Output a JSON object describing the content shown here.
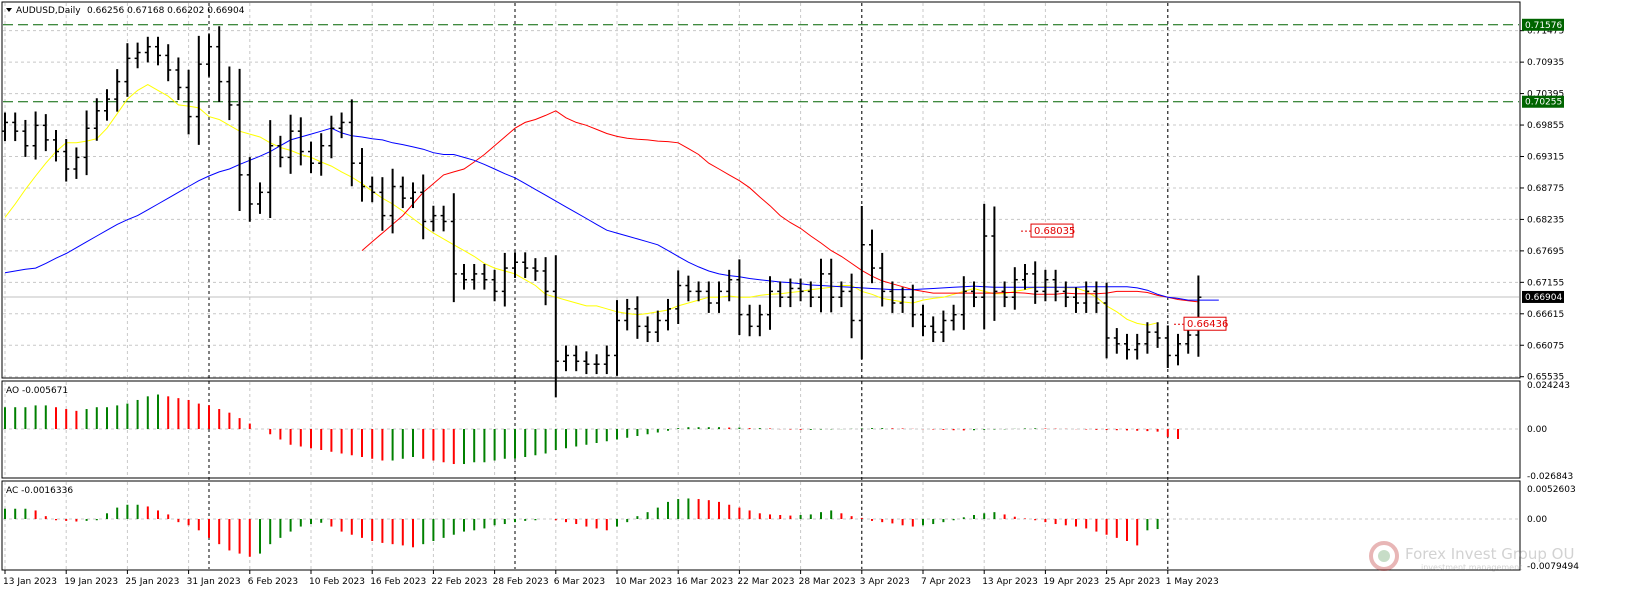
{
  "colors": {
    "up": "#008000",
    "down": "#ff0000",
    "grid": "#c8c8c8",
    "ema_fast": "#ffff00",
    "ema_mid": "#ff0000",
    "ema_slow": "#0000ff",
    "hline": "#006400",
    "price_line": "#c0c0c0"
  },
  "chart_data": {
    "type": "ohlc",
    "symbol_label": "AUDUSD,Daily",
    "ohlc_label": "0.66256 0.67168 0.66202 0.66904",
    "current_price": "0.66904",
    "price_ticks": [
      "0.71475",
      "0.70935",
      "0.70395",
      "0.69855",
      "0.69315",
      "0.68775",
      "0.68235",
      "0.67695",
      "0.67155",
      "0.66615",
      "0.66075",
      "0.65535"
    ],
    "price_range": [
      0.6553,
      0.7195
    ],
    "horizontal_levels": [
      "0.71576",
      "0.70255"
    ],
    "annotations": [
      {
        "label": "0.68035",
        "value": 0.68035,
        "bar": 100
      },
      {
        "label": "0.66436",
        "value": 0.66436,
        "bar": 115
      }
    ],
    "x_labels": [
      {
        "label": "13 Jan 2023",
        "bar": 0
      },
      {
        "label": "19 Jan 2023",
        "bar": 6
      },
      {
        "label": "25 Jan 2023",
        "bar": 12
      },
      {
        "label": "31 Jan 2023",
        "bar": 18
      },
      {
        "label": "6 Feb 2023",
        "bar": 24
      },
      {
        "label": "10 Feb 2023",
        "bar": 30
      },
      {
        "label": "16 Feb 2023",
        "bar": 36
      },
      {
        "label": "22 Feb 2023",
        "bar": 42
      },
      {
        "label": "28 Feb 2023",
        "bar": 48
      },
      {
        "label": "6 Mar 2023",
        "bar": 54
      },
      {
        "label": "10 Mar 2023",
        "bar": 60
      },
      {
        "label": "16 Mar 2023",
        "bar": 66
      },
      {
        "label": "22 Mar 2023",
        "bar": 72
      },
      {
        "label": "28 Mar 2023",
        "bar": 78
      },
      {
        "label": "3 Apr 2023",
        "bar": 84
      },
      {
        "label": "7 Apr 2023",
        "bar": 90
      },
      {
        "label": "13 Apr 2023",
        "bar": 96
      },
      {
        "label": "19 Apr 2023",
        "bar": 102
      },
      {
        "label": "25 Apr 2023",
        "bar": 108
      },
      {
        "label": "1 May 2023",
        "bar": 114
      }
    ],
    "period_separators": [
      20,
      50,
      84,
      114
    ],
    "close_series": [
      0.699,
      0.6975,
      0.695,
      0.6985,
      0.696,
      0.694,
      0.691,
      0.693,
      0.698,
      0.701,
      0.703,
      0.706,
      0.71,
      0.711,
      0.712,
      0.7105,
      0.708,
      0.705,
      0.7,
      0.709,
      0.712,
      0.706,
      0.702,
      0.69,
      0.685,
      0.687,
      0.695,
      0.693,
      0.6975,
      0.694,
      0.692,
      0.695,
      0.698,
      0.699,
      0.692,
      0.688,
      0.687,
      0.683,
      0.688,
      0.686,
      0.687,
      0.682,
      0.683,
      0.682,
      0.673,
      0.672,
      0.673,
      0.672,
      0.67,
      0.674,
      0.675,
      0.674,
      0.6735,
      0.67,
      0.658,
      0.659,
      0.658,
      0.6575,
      0.6575,
      0.659,
      0.665,
      0.667,
      0.664,
      0.663,
      0.665,
      0.667,
      0.671,
      0.67,
      0.67,
      0.668,
      0.67,
      0.672,
      0.666,
      0.664,
      0.666,
      0.67,
      0.669,
      0.6705,
      0.67,
      0.669,
      0.673,
      0.669,
      0.67,
      0.665,
      0.678,
      0.674,
      0.67,
      0.668,
      0.669,
      0.666,
      0.664,
      0.663,
      0.665,
      0.666,
      0.67,
      0.669,
      0.6795,
      0.67,
      0.669,
      0.672,
      0.673,
      0.67,
      0.672,
      0.67,
      0.669,
      0.668,
      0.67,
      0.668,
      0.662,
      0.661,
      0.66,
      0.661,
      0.663,
      0.662,
      0.659,
      0.661,
      0.6625,
      0.669
    ],
    "series": [
      {
        "period": "ema_fast",
        "values": [
          0.6827,
          0.685,
          0.6875,
          0.6898,
          0.692,
          0.694,
          0.6955,
          0.6955,
          0.6958,
          0.6962,
          0.698,
          0.7005,
          0.703,
          0.7045,
          0.7055,
          0.7045,
          0.7035,
          0.702,
          0.7018,
          0.7015,
          0.7,
          0.6995,
          0.6985,
          0.6975,
          0.697,
          0.6965,
          0.6955,
          0.6947,
          0.6942,
          0.6935,
          0.693,
          0.6922,
          0.6915,
          0.6905,
          0.6896,
          0.6885,
          0.6872,
          0.686,
          0.685,
          0.6838,
          0.6825,
          0.6812,
          0.68,
          0.679,
          0.678,
          0.677,
          0.676,
          0.6748,
          0.674,
          0.6735,
          0.673,
          0.672,
          0.671,
          0.6695,
          0.669,
          0.6685,
          0.668,
          0.6675,
          0.6675,
          0.667,
          0.6665,
          0.6662,
          0.666,
          0.6662,
          0.6665,
          0.6668,
          0.6675,
          0.668,
          0.6685,
          0.669,
          0.669,
          0.6692,
          0.669,
          0.669,
          0.6693,
          0.6695,
          0.6696,
          0.6698,
          0.67,
          0.6703,
          0.6705,
          0.6707,
          0.671,
          0.671,
          0.67,
          0.6695,
          0.6688,
          0.6685,
          0.6682,
          0.668,
          0.6685,
          0.6688,
          0.669,
          0.6695,
          0.67,
          0.6705,
          0.67,
          0.6696,
          0.6696,
          0.67,
          0.6703,
          0.6707,
          0.6708,
          0.6707,
          0.6706,
          0.6706,
          0.67,
          0.669,
          0.6675,
          0.6665,
          0.6652,
          0.6645,
          0.6642,
          0.6646
        ],
        "offset": 0
      },
      {
        "period": "ema_mid",
        "values": [
          0.677,
          0.6785,
          0.68,
          0.6815,
          0.683,
          0.685,
          0.687,
          0.6885,
          0.69,
          0.6905,
          0.691,
          0.6922,
          0.6935,
          0.695,
          0.6965,
          0.698,
          0.699,
          0.6995,
          0.7002,
          0.701,
          0.6998,
          0.699,
          0.6985,
          0.6978,
          0.6971,
          0.6966,
          0.6963,
          0.6961,
          0.696,
          0.6958,
          0.6957,
          0.6955,
          0.6945,
          0.6935,
          0.692,
          0.691,
          0.69,
          0.689,
          0.6878,
          0.6862,
          0.6847,
          0.683,
          0.6818,
          0.6808,
          0.6795,
          0.6783,
          0.677,
          0.676,
          0.6748,
          0.6736,
          0.6726,
          0.6718,
          0.6713,
          0.6708,
          0.6703,
          0.67,
          0.6697,
          0.6697,
          0.6697,
          0.6697,
          0.6697,
          0.6697,
          0.6697,
          0.6698,
          0.6698,
          0.6697,
          0.6695,
          0.6695,
          0.6695,
          0.6697,
          0.6696,
          0.6696,
          0.6696,
          0.6697,
          0.67,
          0.67,
          0.67,
          0.6698,
          0.6693,
          0.669,
          0.6686,
          0.6684,
          0.6682
        ],
        "offset": 35
      },
      {
        "period": "ema_slow",
        "values": [
          0.6732,
          0.6735,
          0.6738,
          0.674,
          0.6748,
          0.6757,
          0.6765,
          0.6775,
          0.6785,
          0.6795,
          0.6805,
          0.6815,
          0.6823,
          0.683,
          0.684,
          0.685,
          0.686,
          0.687,
          0.688,
          0.689,
          0.6898,
          0.6905,
          0.691,
          0.6918,
          0.6925,
          0.6932,
          0.694,
          0.695,
          0.696,
          0.6965,
          0.697,
          0.6975,
          0.698,
          0.6972,
          0.6967,
          0.6965,
          0.6962,
          0.696,
          0.6955,
          0.6952,
          0.6948,
          0.6944,
          0.6938,
          0.6935,
          0.6935,
          0.693,
          0.6925,
          0.6918,
          0.691,
          0.6902,
          0.6895,
          0.6885,
          0.6875,
          0.6865,
          0.6855,
          0.6845,
          0.6835,
          0.6825,
          0.6815,
          0.6805,
          0.68,
          0.6795,
          0.679,
          0.6785,
          0.678,
          0.677,
          0.676,
          0.675,
          0.6742,
          0.6735,
          0.673,
          0.6727,
          0.6725,
          0.6722,
          0.672,
          0.6718,
          0.6716,
          0.6715,
          0.6713,
          0.6711,
          0.671,
          0.6709,
          0.6708,
          0.6707,
          0.6706,
          0.6705,
          0.6704,
          0.6703,
          0.6703,
          0.6703,
          0.6704,
          0.6705,
          0.6706,
          0.6707,
          0.6708,
          0.6709,
          0.6708,
          0.6707,
          0.6707,
          0.6707,
          0.6707,
          0.6707,
          0.6707,
          0.6707,
          0.6707,
          0.6707,
          0.6708,
          0.6708,
          0.6708,
          0.6708,
          0.6708,
          0.6706,
          0.6702,
          0.6695,
          0.669,
          0.6688,
          0.6685,
          0.6685,
          0.6685,
          0.6685
        ],
        "offset": 0
      }
    ],
    "ao": {
      "label": "AO -0.005671",
      "ticks": [
        "0.024243",
        "0.00",
        "-0.026843"
      ],
      "range": [
        -0.026843,
        0.024243
      ],
      "values": [
        0.012,
        0.012,
        0.012,
        0.013,
        0.013,
        0.012,
        0.011,
        0.01,
        0.011,
        0.012,
        0.012,
        0.013,
        0.014,
        0.016,
        0.018,
        0.019,
        0.018,
        0.017,
        0.016,
        0.014,
        0.013,
        0.011,
        0.009,
        0.006,
        0.003,
        0.0,
        -0.003,
        -0.006,
        -0.009,
        -0.01,
        -0.011,
        -0.012,
        -0.013,
        -0.014,
        -0.015,
        -0.016,
        -0.017,
        -0.018,
        -0.018,
        -0.017,
        -0.016,
        -0.017,
        -0.018,
        -0.019,
        -0.02,
        -0.02,
        -0.019,
        -0.019,
        -0.018,
        -0.017,
        -0.017,
        -0.016,
        -0.015,
        -0.014,
        -0.012,
        -0.011,
        -0.01,
        -0.009,
        -0.008,
        -0.007,
        -0.006,
        -0.005,
        -0.004,
        -0.003,
        -0.002,
        -0.001,
        0.0005,
        0.001,
        0.001,
        0.001,
        0.001,
        0.0008,
        0.0008,
        0.0005,
        0.0005,
        0.0003,
        -0.0001,
        -0.0003,
        -0.0005,
        -0.0005,
        -0.0003,
        -0.0002,
        -0.0001,
        0.0001,
        0.0003,
        0.0005,
        0.0005,
        0.0004,
        0.0003,
        0.0001,
        -0.0001,
        -0.0003,
        -0.0005,
        -0.0007,
        -0.0008,
        -0.0007,
        -0.0005,
        -0.0003,
        -0.0002,
        0.0001,
        0.0003,
        0.0004,
        0.0003,
        0.0002,
        0.0001,
        -0.0001,
        -0.0003,
        -0.0005,
        -0.0006,
        -0.0007,
        -0.0008,
        -0.001,
        -0.0012,
        -0.0015,
        -0.0045,
        -0.0057
      ]
    },
    "ac": {
      "label": "AC -0.0016336",
      "ticks": [
        "0.0052603",
        "0.00",
        "-0.0079494"
      ],
      "range": [
        -0.0079494,
        0.0052603
      ],
      "values": [
        0.0018,
        0.0018,
        0.0018,
        0.0015,
        0.0005,
        -0.0002,
        -0.0003,
        -0.0004,
        -0.0003,
        -0.0002,
        0.001,
        0.002,
        0.0025,
        0.0025,
        0.0022,
        0.0015,
        0.0008,
        -0.0005,
        -0.001,
        -0.0018,
        -0.003,
        -0.004,
        -0.005,
        -0.0055,
        -0.006,
        -0.0055,
        -0.004,
        -0.003,
        -0.002,
        -0.0012,
        -0.0008,
        -0.0006,
        -0.0012,
        -0.002,
        -0.0025,
        -0.003,
        -0.0035,
        -0.0038,
        -0.004,
        -0.0042,
        -0.0045,
        -0.004,
        -0.0035,
        -0.003,
        -0.0025,
        -0.002,
        -0.0018,
        -0.0015,
        -0.001,
        -0.0008,
        -0.0005,
        -0.0003,
        -0.0002,
        0.0,
        -0.0002,
        -0.0005,
        -0.0008,
        -0.0012,
        -0.0015,
        -0.0018,
        -0.0012,
        -0.0005,
        0.0005,
        0.0012,
        0.002,
        0.003,
        0.0035,
        0.0036,
        0.0035,
        0.0033,
        0.003,
        0.0025,
        0.002,
        0.0015,
        0.001,
        0.0008,
        0.0007,
        0.0006,
        0.0007,
        0.0008,
        0.0012,
        0.0015,
        0.001,
        0.0005,
        0.0002,
        -0.0003,
        -0.0005,
        -0.0007,
        -0.001,
        -0.0012,
        -0.001,
        -0.0008,
        -0.0005,
        -0.0002,
        0.0003,
        0.0007,
        0.001,
        0.0012,
        0.0008,
        0.0004,
        0.0001,
        -0.0002,
        -0.0005,
        -0.0008,
        -0.001,
        -0.0012,
        -0.0015,
        -0.002,
        -0.0025,
        -0.003,
        -0.0035,
        -0.0042,
        -0.0018,
        -0.0016
      ]
    }
  }
}
